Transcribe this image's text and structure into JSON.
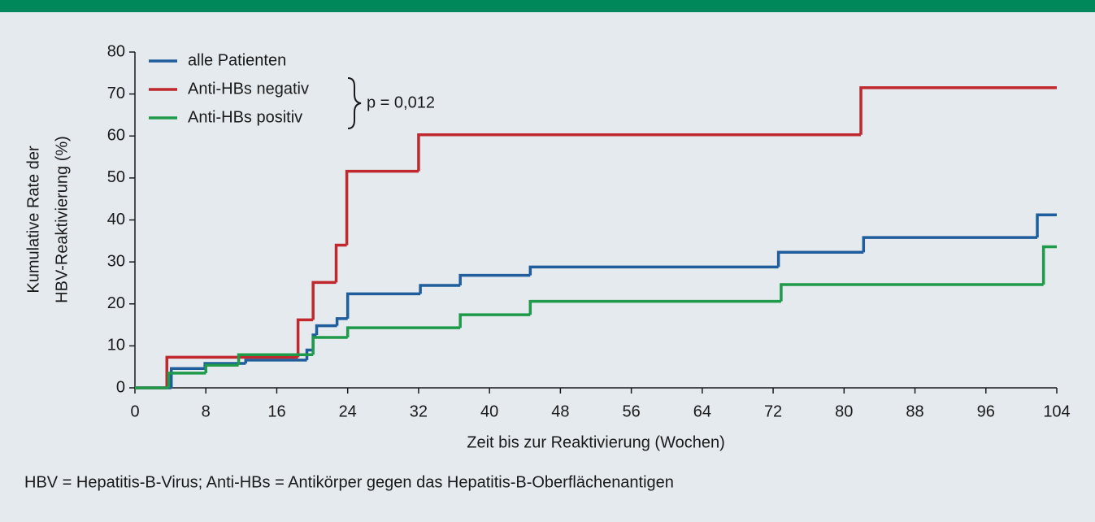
{
  "chart_data": {
    "type": "step",
    "x_label": "Zeit bis zur Reaktivierung (Wochen)",
    "y_label_lines": [
      "Kumulative Rate der",
      "HBV-Reaktivierung (%)"
    ],
    "annotation": "p = 0,012",
    "footnote": "HBV = Hepatitis-B-Virus; Anti-HBs = Antikörper gegen das Hepatitis-B-Oberflächenantigen",
    "xlim": [
      0,
      104
    ],
    "ylim": [
      0,
      80
    ],
    "xticks": [
      0,
      8,
      16,
      24,
      32,
      40,
      48,
      56,
      64,
      72,
      80,
      88,
      96,
      104
    ],
    "yticks": [
      0,
      10,
      20,
      30,
      40,
      50,
      60,
      70,
      80
    ],
    "grid": false,
    "legend": "top-left",
    "series": [
      {
        "name": "alle Patienten",
        "color": "#1f5d9c",
        "x": [
          0,
          4.1,
          7.9,
          12.5,
          19.4,
          20.1,
          20.5,
          22.8,
          24,
          32.2,
          36.7,
          44.6,
          72.6,
          82.2,
          101.8
        ],
        "values": [
          0,
          4.6,
          5.8,
          6.6,
          9,
          12.6,
          14.8,
          16.5,
          22.4,
          24.4,
          26.8,
          28.8,
          32.3,
          35.8,
          41.2
        ]
      },
      {
        "name": "Anti-HBs negativ",
        "color": "#c0282d",
        "x": [
          0,
          3.6,
          18.4,
          20.1,
          22.7,
          23.9,
          32,
          81.9
        ],
        "values": [
          0,
          7.3,
          16.2,
          25.1,
          34,
          51.6,
          60.3,
          71.5
        ]
      },
      {
        "name": "Anti-HBs positiv",
        "color": "#1f9a4a",
        "x": [
          0,
          3.8,
          8,
          11.7,
          20.1,
          24,
          36.7,
          44.6,
          72.9,
          102.5
        ],
        "values": [
          0,
          3.5,
          5.4,
          7.9,
          12,
          14.3,
          17.4,
          20.6,
          24.6,
          33.6
        ]
      }
    ]
  }
}
